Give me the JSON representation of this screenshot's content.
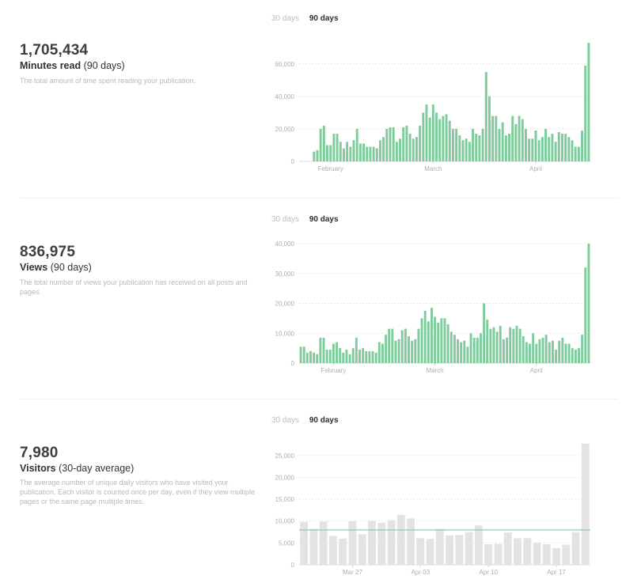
{
  "sections": [
    {
      "tabs": [
        "30 days",
        "90 days"
      ],
      "value": "1,705,434",
      "label_strong": "Minutes read",
      "label_rest": "(90 days)",
      "description": "The total amount of time spent reading your publication.",
      "chart_data": {
        "type": "bar",
        "ylim": [
          0,
          75000
        ],
        "y_ticks": [
          0,
          20000,
          40000,
          60000
        ],
        "y_tick_labels": [
          "0",
          "20,000",
          "40,000",
          "60,000"
        ],
        "x_tick_labels": [
          "February",
          "March",
          "April"
        ],
        "x_tick_index": [
          9,
          40,
          71
        ],
        "color": "#7ecb9c",
        "values": [
          0,
          0,
          0,
          0,
          6000,
          7000,
          20000,
          22000,
          10000,
          10000,
          17000,
          17000,
          12000,
          8000,
          12000,
          9000,
          13000,
          20000,
          11000,
          11000,
          9000,
          9000,
          9000,
          8000,
          13000,
          15000,
          20000,
          21000,
          21000,
          12000,
          14000,
          21000,
          22000,
          17000,
          14000,
          15000,
          22000,
          30000,
          35000,
          27000,
          35000,
          30000,
          26000,
          28000,
          29000,
          25000,
          20000,
          20000,
          16000,
          13000,
          14000,
          12000,
          20000,
          17000,
          16000,
          20000,
          55000,
          40000,
          28000,
          28000,
          20000,
          24000,
          16000,
          17000,
          28000,
          23000,
          28000,
          26000,
          20000,
          14000,
          14000,
          19000,
          13000,
          15000,
          20000,
          15000,
          17000,
          12000,
          18000,
          17000,
          17000,
          15000,
          13000,
          9000,
          9000,
          19000,
          59000,
          73000
        ]
      }
    },
    {
      "tabs": [
        "30 days",
        "90 days"
      ],
      "value": "836,975",
      "label_strong": "Views",
      "label_rest": "(90 days)",
      "description": "The total number of views your publication has received on all posts and pages.",
      "chart_data": {
        "type": "bar",
        "ylim": [
          0,
          40000
        ],
        "y_ticks": [
          0,
          10000,
          20000,
          30000,
          40000
        ],
        "y_tick_labels": [
          "0",
          "10,000",
          "20,000",
          "30,000",
          "40,000"
        ],
        "x_tick_labels": [
          "February",
          "March",
          "April"
        ],
        "x_tick_index": [
          10,
          41,
          72
        ],
        "color": "#7ecb9c",
        "values": [
          5500,
          5500,
          3500,
          4000,
          3500,
          3000,
          8500,
          8500,
          4500,
          4500,
          6500,
          7000,
          5000,
          3500,
          4500,
          3000,
          5000,
          8500,
          4500,
          5000,
          4000,
          4000,
          4000,
          3500,
          7000,
          6500,
          9500,
          11500,
          11500,
          7500,
          8000,
          11000,
          11500,
          9000,
          7500,
          8000,
          11500,
          15000,
          17500,
          14000,
          18500,
          15500,
          13500,
          15000,
          15000,
          13000,
          10500,
          9500,
          8000,
          7000,
          7500,
          5500,
          10000,
          8500,
          8500,
          10000,
          20000,
          14500,
          11500,
          12000,
          10500,
          12500,
          8000,
          8500,
          12000,
          11500,
          12500,
          11500,
          9000,
          7000,
          6500,
          10000,
          6500,
          8000,
          8500,
          9500,
          7000,
          7500,
          4500,
          7500,
          8500,
          6500,
          6500,
          5000,
          4500,
          5000,
          9500,
          32000,
          40000
        ]
      }
    },
    {
      "tabs": [
        "30 days",
        "90 days"
      ],
      "value": "7,980",
      "label_strong": "Visitors",
      "label_rest": "(30-day average)",
      "description": "The average number of unique daily visitors who have visited your publication. Each visitor is counted once per day, even if they view multiple pages or the same page multiple times.",
      "chart_data": {
        "type": "bar",
        "ylim": [
          0,
          27500
        ],
        "y_ticks": [
          0,
          5000,
          10000,
          15000,
          20000,
          25000
        ],
        "y_tick_labels": [
          "0",
          "5,000",
          "10,000",
          "15,000",
          "20,000",
          "25,000"
        ],
        "x_tick_labels": [
          "Mar 27",
          "Apr 03",
          "Apr 10",
          "Apr 17"
        ],
        "x_tick_index": [
          5,
          12,
          19,
          26
        ],
        "average": 7980,
        "color": "#e3e3e3",
        "avg_color": "#8ccfa4",
        "values": [
          9800,
          8200,
          9900,
          6600,
          6000,
          10000,
          7000,
          10100,
          9600,
          10200,
          11400,
          10600,
          6100,
          5900,
          8200,
          6700,
          6800,
          7500,
          9000,
          4700,
          4800,
          7400,
          6100,
          6100,
          5100,
          4700,
          3800,
          4600,
          7500,
          27700
        ]
      }
    }
  ]
}
